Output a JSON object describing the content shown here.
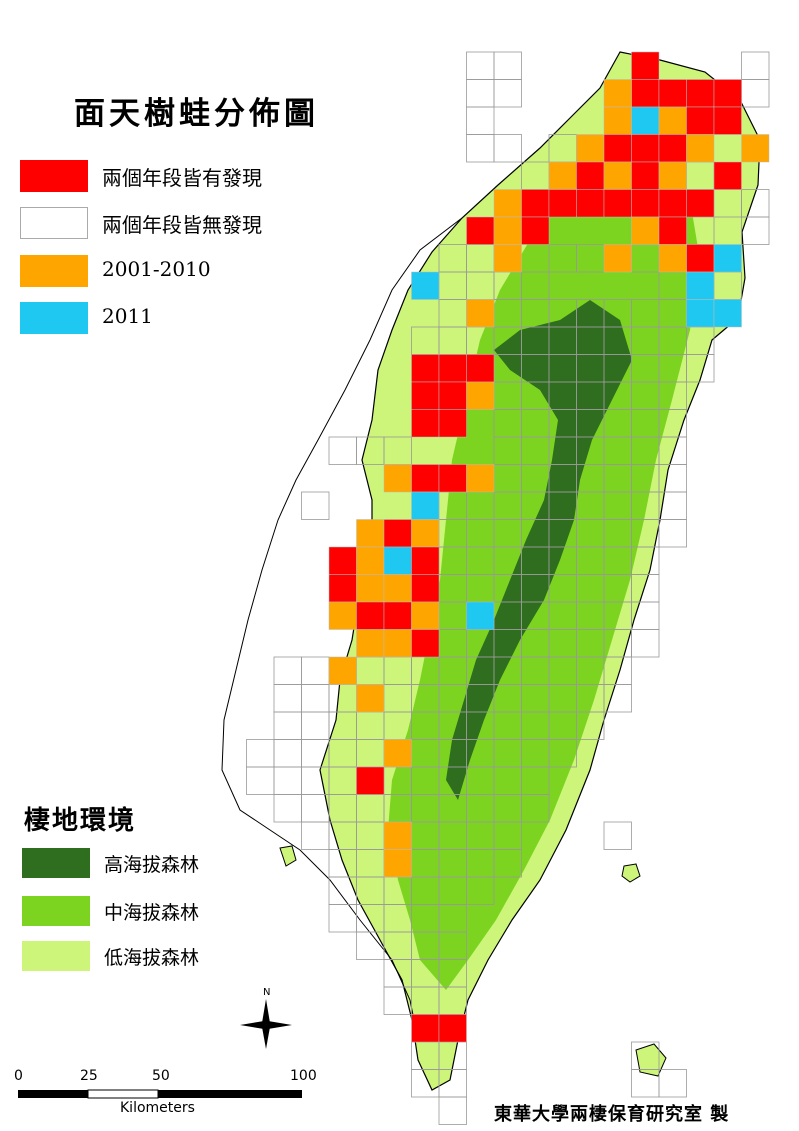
{
  "title": "面天樹蛙分佈圖",
  "legend": [
    {
      "label": "兩個年段皆有發現",
      "color": "#ff0000"
    },
    {
      "label": "兩個年段皆無發現",
      "color": "#ffffff"
    },
    {
      "label": "2001-2010",
      "color": "#ffa500"
    },
    {
      "label": "2011",
      "color": "#1ec8f0"
    }
  ],
  "habitat": {
    "title": "棲地環境",
    "items": [
      {
        "label": "高海拔森林",
        "color": "#2e6e1e"
      },
      {
        "label": "中海拔森林",
        "color": "#7cd420"
      },
      {
        "label": "低海拔森林",
        "color": "#ccf57a"
      }
    ]
  },
  "scale": {
    "ticks": [
      "0",
      "25",
      "50",
      "100"
    ],
    "unit": "Kilometers"
  },
  "north": "N",
  "credit": "東華大學兩棲保育研究室 製"
}
